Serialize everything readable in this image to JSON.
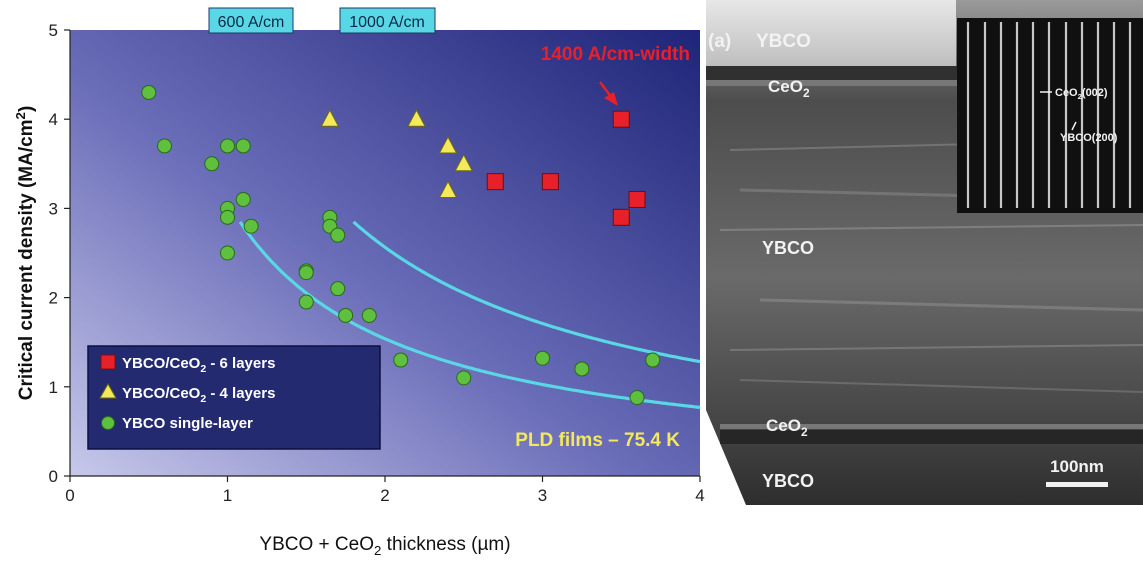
{
  "chart_data": {
    "type": "scatter",
    "xlabel": {
      "pre": "YBCO + CeO",
      "sub": "2",
      "post": " thickness  (µm)"
    },
    "ylabel": {
      "pre": "Critical current density  (MA/cm",
      "sup": "2",
      "post": ")"
    },
    "xlim": [
      0,
      4
    ],
    "ylim": [
      0,
      5
    ],
    "x_ticks": [
      "0",
      "1",
      "2",
      "3",
      "4"
    ],
    "y_ticks": [
      "0",
      "1",
      "2",
      "3",
      "4",
      "5"
    ],
    "grid": false,
    "legend_position": "bottom-left",
    "series": [
      {
        "name": {
          "pre": "YBCO/CeO",
          "sub": "2",
          "post": " - 6 layers"
        },
        "marker": "square",
        "color": "#e8202a",
        "points": [
          [
            2.7,
            3.3
          ],
          [
            3.05,
            3.3
          ],
          [
            3.5,
            4.0
          ],
          [
            3.5,
            2.9
          ],
          [
            3.6,
            3.1
          ]
        ]
      },
      {
        "name": {
          "pre": "YBCO/CeO",
          "sub": "2",
          "post": " - 4 layers"
        },
        "marker": "triangle",
        "color": "#f3e95a",
        "points": [
          [
            1.65,
            4.0
          ],
          [
            2.2,
            4.0
          ],
          [
            2.4,
            3.7
          ],
          [
            2.5,
            3.5
          ],
          [
            2.4,
            3.2
          ]
        ]
      },
      {
        "name": {
          "pre": "YBCO single-layer",
          "sub": "",
          "post": ""
        },
        "marker": "circle",
        "color": "#5fbf3f",
        "points": [
          [
            0.5,
            4.3
          ],
          [
            0.6,
            3.7
          ],
          [
            0.9,
            3.5
          ],
          [
            1.0,
            3.7
          ],
          [
            1.1,
            3.7
          ],
          [
            1.0,
            3.0
          ],
          [
            1.1,
            3.1
          ],
          [
            1.0,
            2.9
          ],
          [
            1.15,
            2.8
          ],
          [
            1.0,
            2.5
          ],
          [
            1.65,
            2.9
          ],
          [
            1.65,
            2.8
          ],
          [
            1.7,
            2.7
          ],
          [
            1.5,
            2.3
          ],
          [
            1.5,
            2.28
          ],
          [
            1.7,
            2.1
          ],
          [
            1.5,
            1.95
          ],
          [
            1.75,
            1.8
          ],
          [
            1.9,
            1.8
          ],
          [
            2.1,
            1.3
          ],
          [
            2.5,
            1.1
          ],
          [
            3.0,
            1.32
          ],
          [
            3.25,
            1.2
          ],
          [
            3.6,
            0.88
          ],
          [
            3.7,
            1.3
          ]
        ]
      }
    ],
    "curves": [
      {
        "label": "600 A/cm",
        "constant_um_MAcm2": 6,
        "color": "#5ad7e5"
      },
      {
        "label": "1000 A/cm",
        "constant_um_MAcm2": 10,
        "color": "#5ad7e5"
      }
    ],
    "annotations": {
      "top_right": "1400 A/cm-width",
      "bottom_right": "PLD films – 75.4 K"
    }
  },
  "tem_image": {
    "panel_label": "(a)",
    "labels": {
      "ybco_top": "YBCO",
      "ceo2_top": {
        "pre": "CeO",
        "sub": "2"
      },
      "ybco_mid": "YBCO",
      "ceo2_bottom": {
        "pre": "CeO",
        "sub": "2"
      },
      "ybco_bottom": "YBCO"
    },
    "inset_labels": {
      "ceo2_002": {
        "pre": "CeO",
        "sub": "2",
        "post": "(002)"
      },
      "ybco_200": "YBCO(200)"
    },
    "scale_bar_label": "100nm"
  }
}
